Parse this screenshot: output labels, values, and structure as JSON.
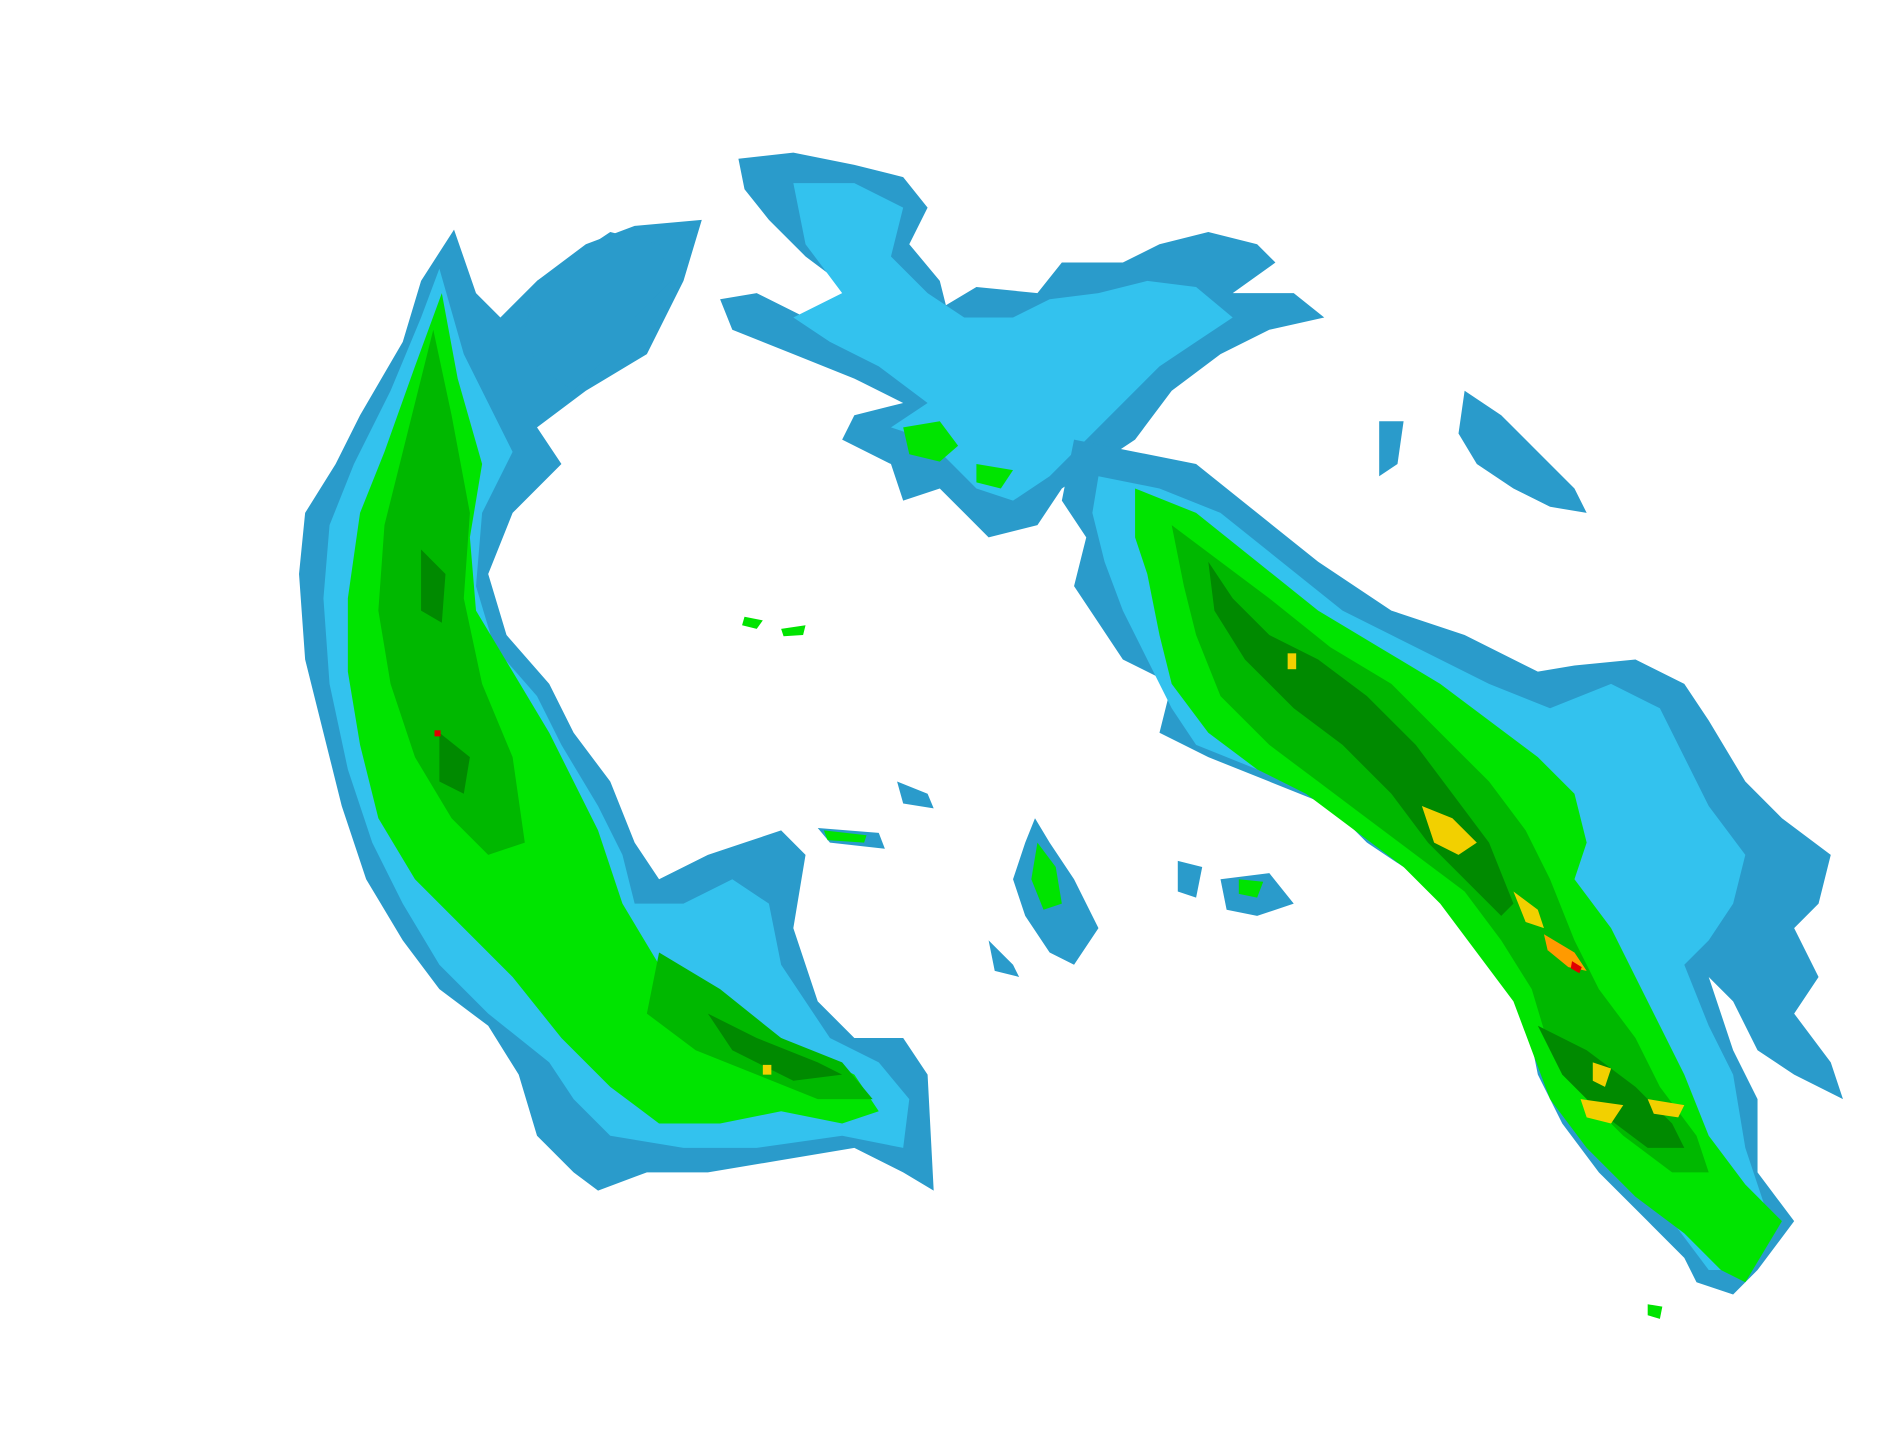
{
  "map": {
    "type": "radar-reflectivity",
    "colors": {
      "background": "#ffffff",
      "level_1": "#2a9bcb",
      "level_2": "#33c2ee",
      "level_3": "#00e400",
      "level_4": "#00b800",
      "level_5": "#008a00",
      "level_6": "#f2d000",
      "level_7": "#ff9a00",
      "level_8": "#e00000"
    }
  }
}
